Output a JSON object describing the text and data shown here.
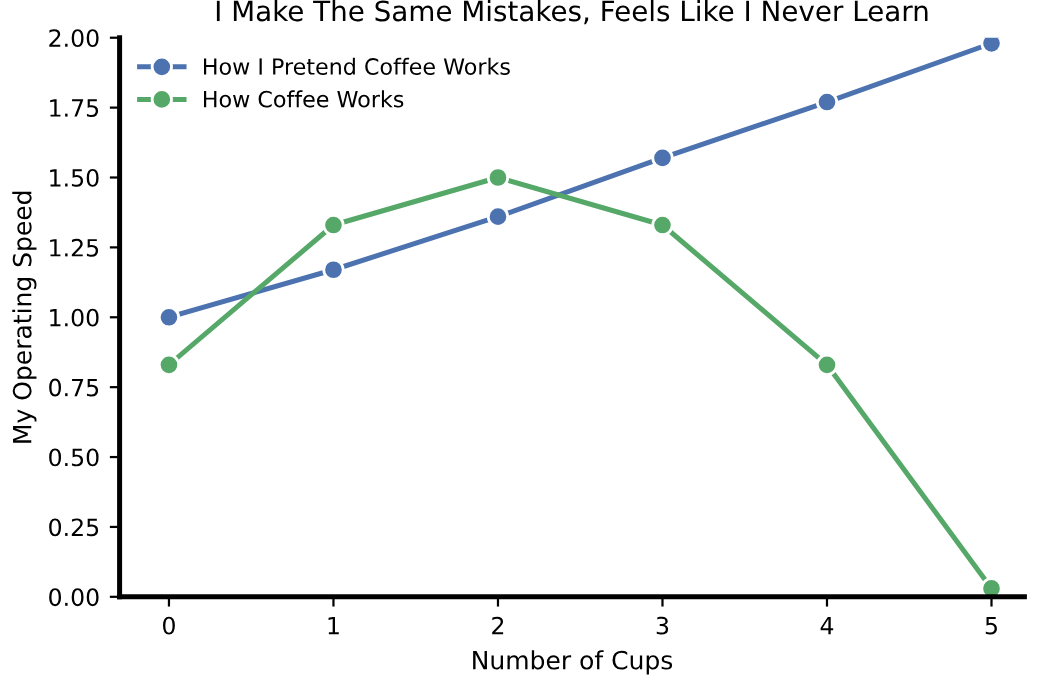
{
  "chart_data": {
    "type": "line",
    "title": "I Make The Same Mistakes, Feels Like I Never Learn",
    "xlabel": "Number of Cups",
    "ylabel": "My Operating Speed",
    "x": [
      0,
      1,
      2,
      3,
      4,
      5
    ],
    "series": [
      {
        "name": "How I Pretend Coffee Works",
        "color": "#4c72b0",
        "values": [
          1.0,
          1.17,
          1.36,
          1.57,
          1.77,
          1.98
        ]
      },
      {
        "name": "How Coffee Works",
        "color": "#55a868",
        "values": [
          0.83,
          1.33,
          1.5,
          1.33,
          0.83,
          0.03
        ]
      }
    ],
    "xlim": [
      -0.3,
      5.2
    ],
    "ylim": [
      0,
      2.0
    ],
    "xticks": [
      0,
      1,
      2,
      3,
      4,
      5
    ],
    "yticks": [
      {
        "value": 0,
        "label": "0.00"
      },
      {
        "value": 0.25,
        "label": "0.25"
      },
      {
        "value": 0.5,
        "label": "0.50"
      },
      {
        "value": 0.75,
        "label": "0.75"
      },
      {
        "value": 1.0,
        "label": "1.00"
      },
      {
        "value": 1.25,
        "label": "1.25"
      },
      {
        "value": 1.5,
        "label": "1.50"
      },
      {
        "value": 1.75,
        "label": "1.75"
      },
      {
        "value": 2.0,
        "label": "2.00"
      }
    ],
    "legend": "top left",
    "marker": "circle",
    "line_style": "solid",
    "grid": false
  }
}
